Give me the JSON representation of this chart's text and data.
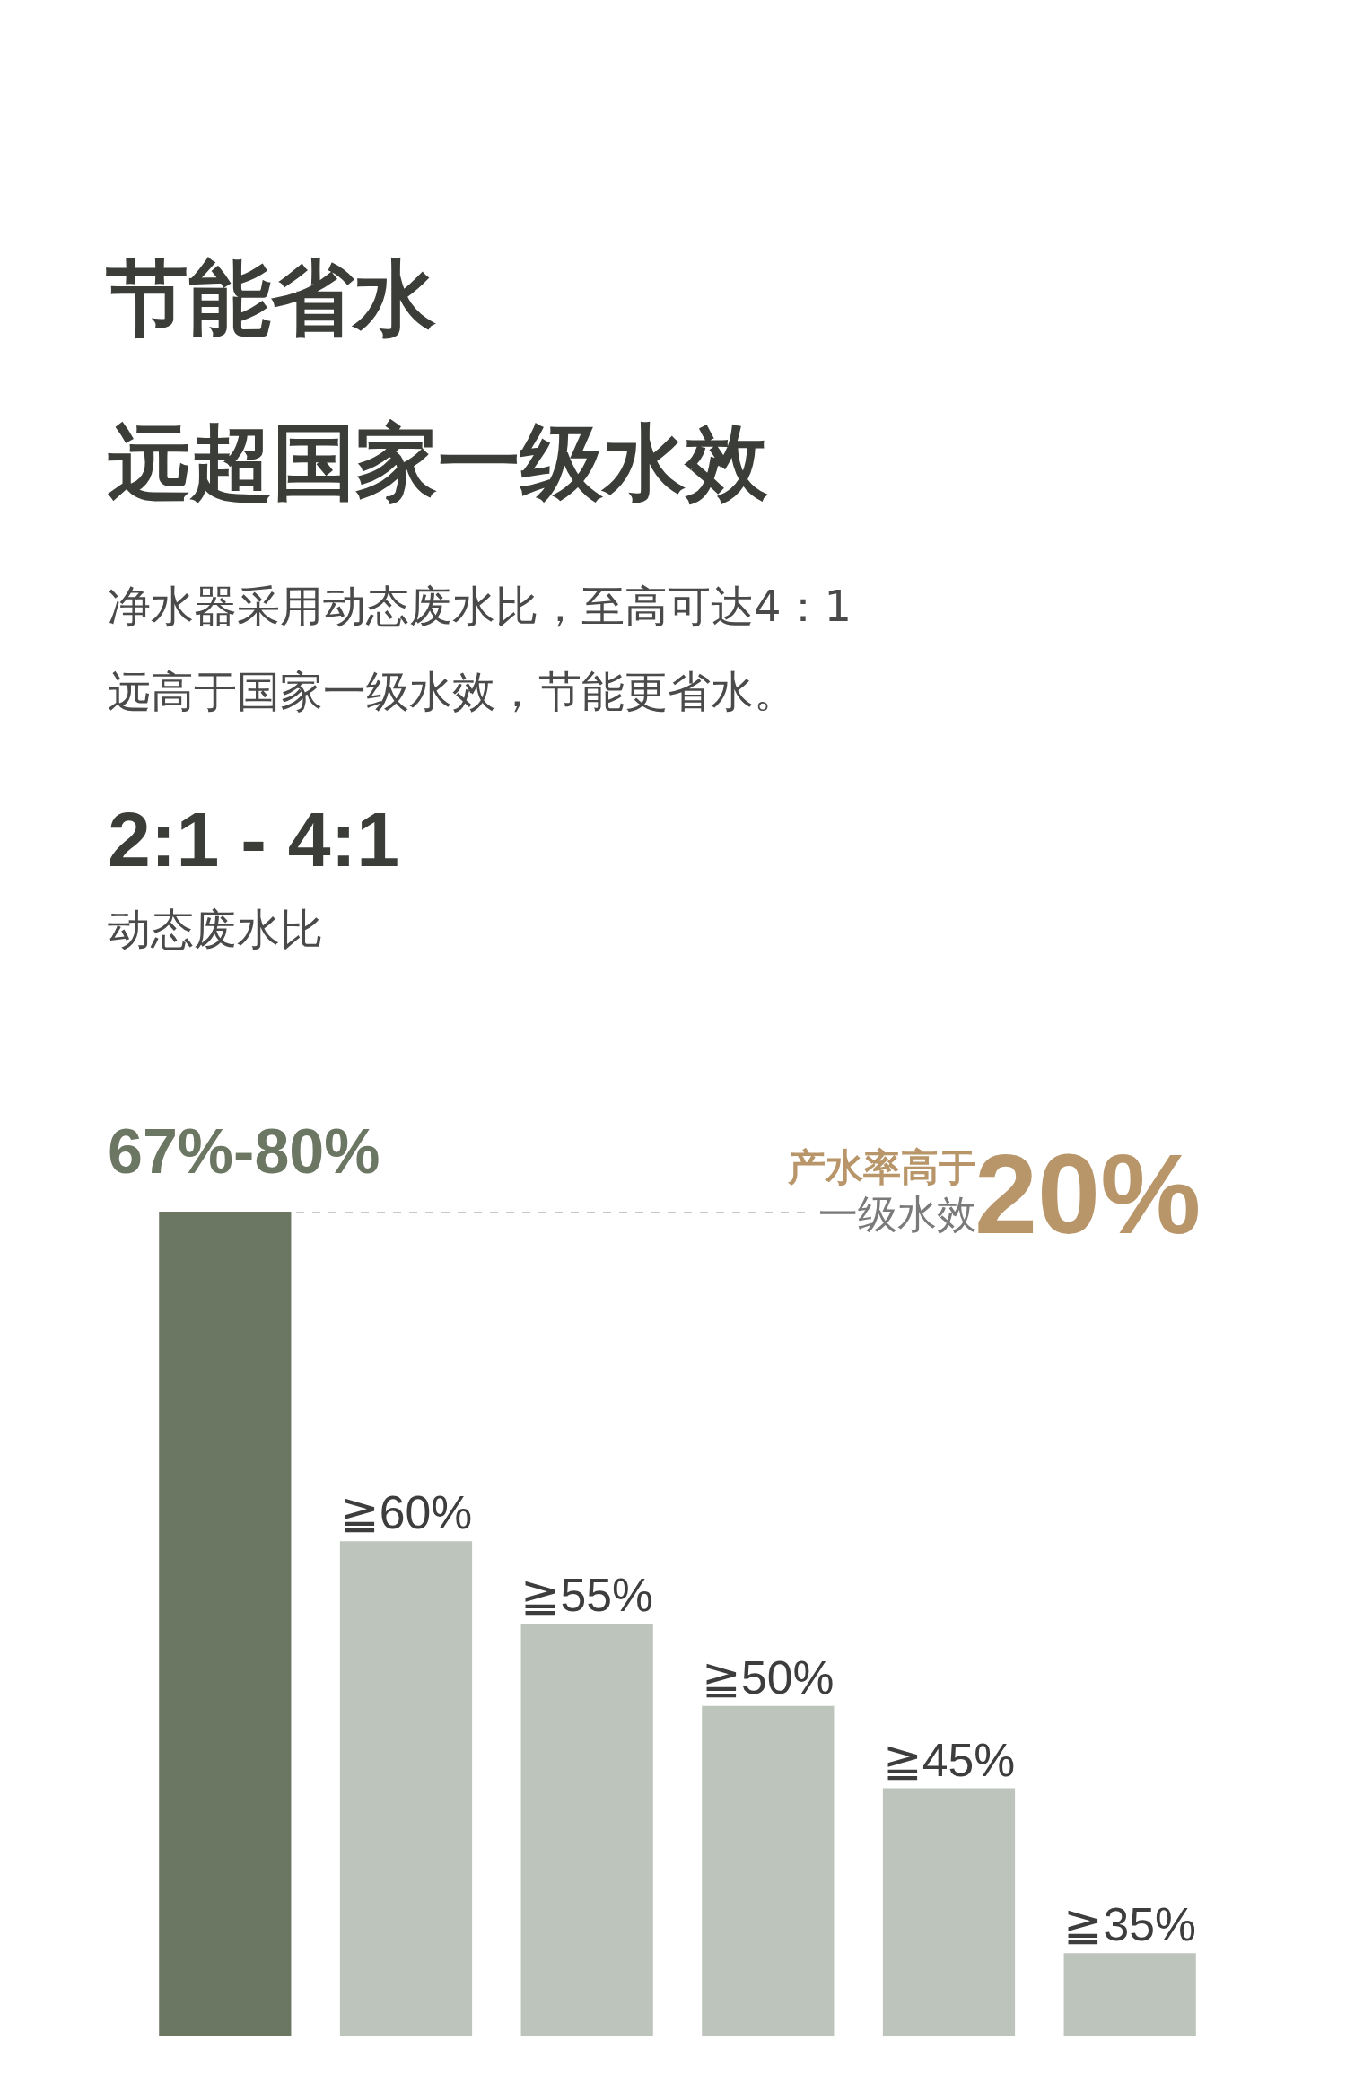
{
  "chart_data": {
    "type": "bar",
    "title": "节能省水",
    "subtitle": "净水器采用动态废水比，至高可达4：1",
    "annotations": [
      "远超国家一级水效",
      "远高于国家一级水效，节能更省水。",
      "2:1 - 4:1",
      "动态废水比",
      "67%-80%",
      "一级水效",
      "20%"
    ],
    "categories": [
      null,
      null,
      null,
      null,
      null,
      null
    ],
    "values": [
      80,
      60,
      55,
      50,
      45,
      35
    ],
    "value_labels": [
      null,
      "≧60%",
      "≧55%",
      "≧50%",
      "≧45%",
      "≧35%"
    ],
    "colors": [
      "#6b7663",
      "#bcc4bb",
      "#bcc4bb",
      "#bcc4bb",
      "#bcc4bb",
      "#bcc4bb"
    ],
    "ylim": [
      30,
      80
    ],
    "ref_lines": [
      {
        "axis": "y",
        "value": 80,
        "label": "产水率高于",
        "color": "#c8c8c8",
        "line_style": "dashed"
      }
    ]
  }
}
